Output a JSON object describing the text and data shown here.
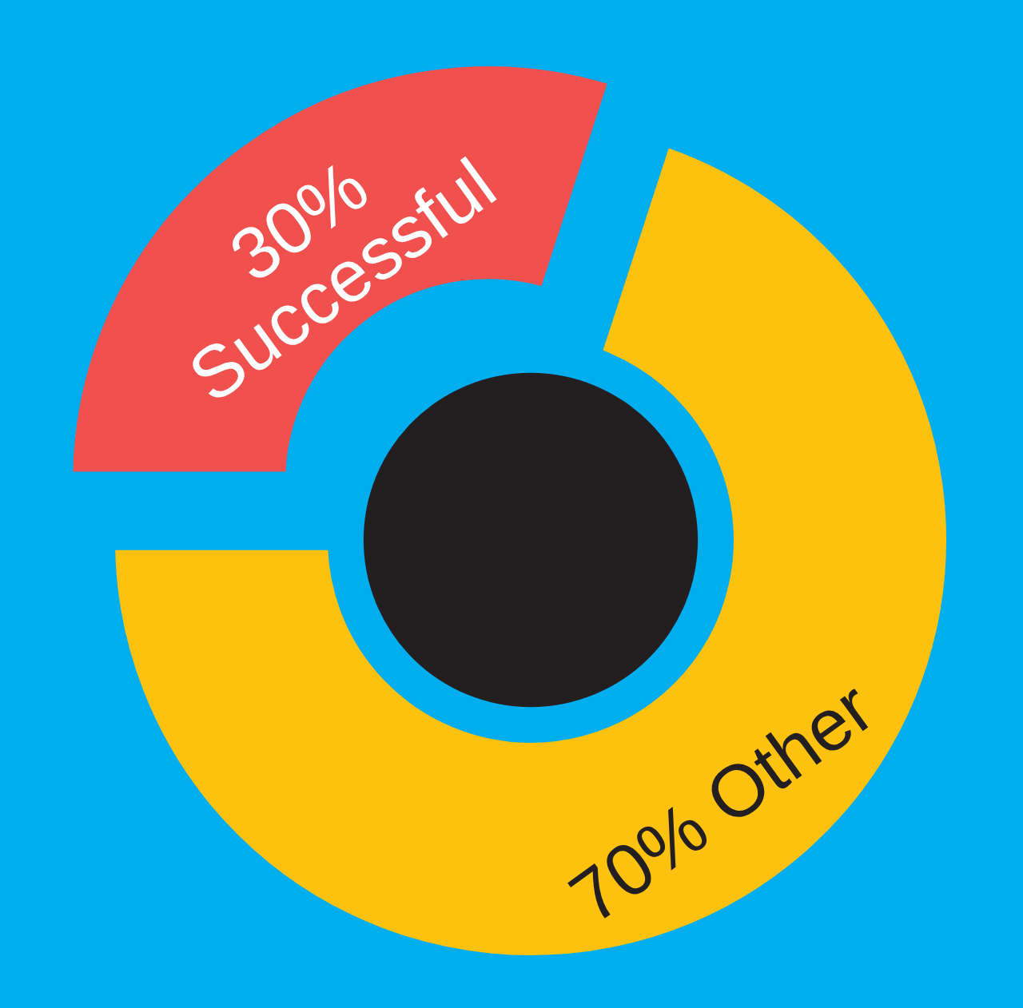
{
  "chart_data": {
    "type": "donut",
    "categories": [
      "Successful",
      "Other"
    ],
    "values": [
      30,
      70
    ],
    "value_labels": [
      "30%",
      "70%"
    ],
    "colors": [
      "#f0504e",
      "#fdc10f"
    ],
    "data_labels": true
  }
}
